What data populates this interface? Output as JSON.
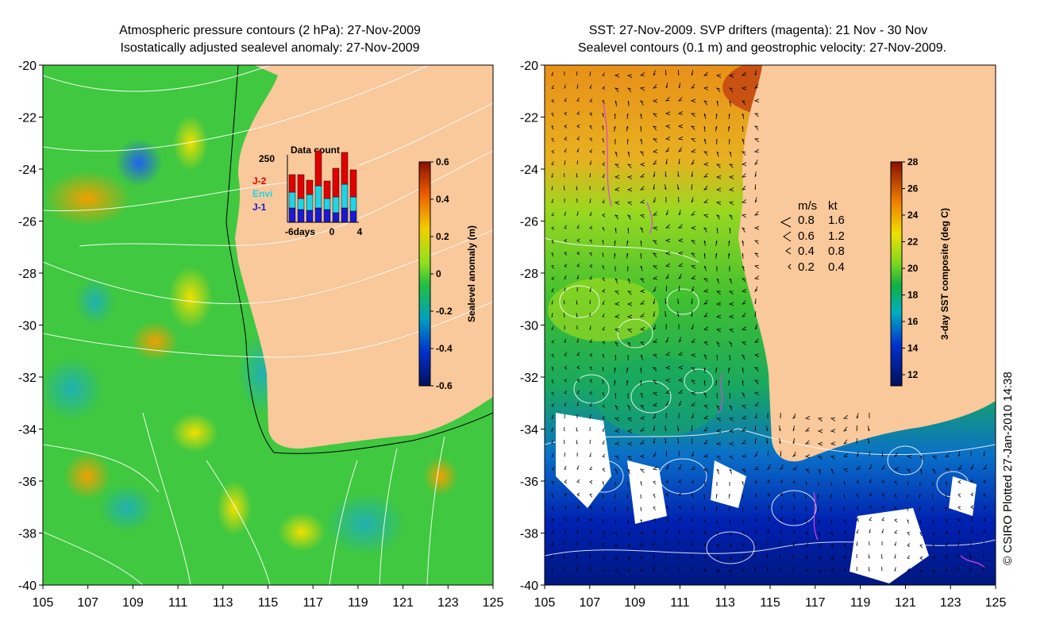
{
  "left_panel": {
    "title_line1": "Atmospheric pressure contours (2 hPa): 27-Nov-2009",
    "title_line2": "Isostatically adjusted sealevel anomaly: 27-Nov-2009",
    "x_ticks": [
      "105",
      "107",
      "109",
      "111",
      "113",
      "115",
      "117",
      "119",
      "121",
      "123",
      "125"
    ],
    "y_ticks": [
      "-20",
      "-22",
      "-24",
      "-26",
      "-28",
      "-30",
      "-32",
      "-34",
      "-36",
      "-38",
      "-40"
    ],
    "colorbar": {
      "label": "Sealevel anomaly (m)",
      "ticks": [
        "0.6",
        "0.4",
        "0.2",
        "0",
        "-0.2",
        "-0.4",
        "-0.6"
      ]
    },
    "inset": {
      "title": "Data count",
      "ymax_label": "250",
      "x_labels": [
        "-6days",
        "0",
        "4"
      ],
      "legend": [
        {
          "label": "J-2",
          "color": "#e00000"
        },
        {
          "label": "Envi",
          "color": "#22d3e6"
        },
        {
          "label": "J-1",
          "color": "#1a1ad0"
        }
      ]
    }
  },
  "right_panel": {
    "title_line1": "SST: 27-Nov-2009. SVP drifters (magenta): 21 Nov - 30 Nov",
    "title_line2": "Sealevel contours (0.1 m) and geostrophic velocity: 27-Nov-2009.",
    "x_ticks": [
      "105",
      "107",
      "109",
      "111",
      "113",
      "115",
      "117",
      "119",
      "121",
      "123",
      "125"
    ],
    "y_ticks": [
      "-20",
      "-22",
      "-24",
      "-26",
      "-28",
      "-30",
      "-32",
      "-34",
      "-36",
      "-38",
      "-40"
    ],
    "colorbar": {
      "label": "3-day SST composite (deg C)",
      "ticks": [
        "28",
        "26",
        "24",
        "22",
        "20",
        "18",
        "16",
        "14",
        "12"
      ]
    },
    "velocity_legend": {
      "header_ms": "m/s",
      "header_kt": "kt",
      "rows": [
        {
          "ms": "0.8",
          "kt": "1.6"
        },
        {
          "ms": "0.6",
          "kt": "1.2"
        },
        {
          "ms": "0.4",
          "kt": "0.8"
        },
        {
          "ms": "0.2",
          "kt": "0.4"
        }
      ]
    }
  },
  "credit": "© CSIRO Plotted 27-Jan-2010 14:38",
  "colors": {
    "land": "#f9c89b",
    "sea_green": "#3fcf3f",
    "sst_warm": "#f0a020"
  }
}
